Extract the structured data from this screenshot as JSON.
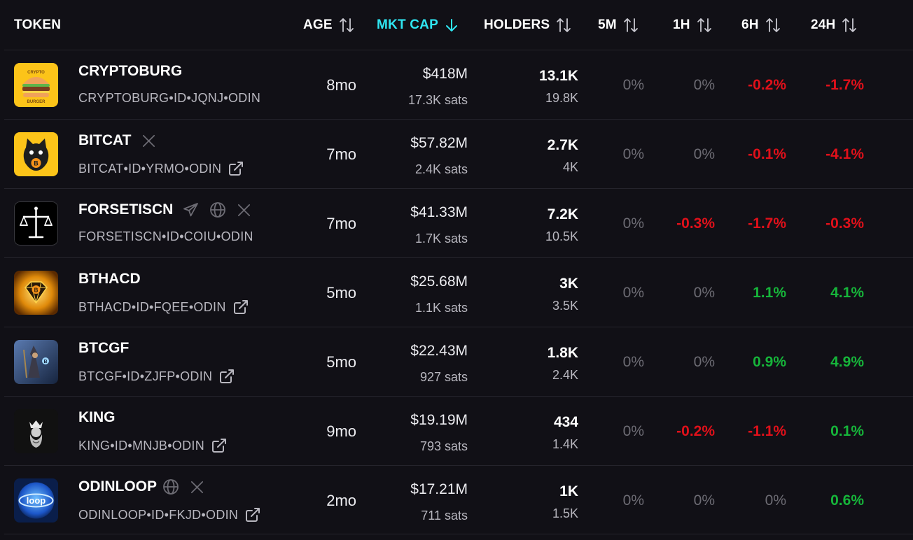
{
  "columns": {
    "token": "TOKEN",
    "age": "AGE",
    "mkt_cap": "MKT CAP",
    "holders": "HOLDERS",
    "m5": "5M",
    "h1": "1H",
    "h6": "6H",
    "h24": "24H"
  },
  "active_sort": {
    "column": "MKT CAP",
    "direction": "descending",
    "color": "#2fe6f2"
  },
  "colors": {
    "negative": "#e0101a",
    "positive": "#16b53a",
    "neutral": "#6d6c74",
    "background": "#111016"
  },
  "rows": [
    {
      "name": "CRYPTOBURG",
      "id": "CRYPTOBURG•ID•JQNJ•ODIN",
      "age": "8mo",
      "mcap": "$418M",
      "sats": "17.3K sats",
      "holders": "13.1K",
      "holders2": "19.8K",
      "m5": "0%",
      "h1": "0%",
      "h6": "-0.2%",
      "h24": "-1.7%",
      "socials": [],
      "logo_icon": "burger-logo-icon",
      "logo_text_top": "CRYPTO",
      "logo_text_bottom": "BURGER",
      "logo_color": "#fcc419"
    },
    {
      "name": "BITCAT",
      "id": "BITCAT•ID•YRMO•ODIN",
      "age": "7mo",
      "mcap": "$57.82M",
      "sats": "2.4K sats",
      "holders": "2.7K",
      "holders2": "4K",
      "m5": "0%",
      "h1": "0%",
      "h6": "-0.1%",
      "h24": "-4.1%",
      "socials": [
        "x-icon"
      ],
      "logo_icon": "cat-logo-icon",
      "logo_color": "#fcc419"
    },
    {
      "name": "FORSETISCN",
      "id": "FORSETISCN•ID•COIU•ODIN",
      "age": "7mo",
      "mcap": "$41.33M",
      "sats": "1.7K sats",
      "holders": "7.2K",
      "holders2": "10.5K",
      "m5": "0%",
      "h1": "-0.3%",
      "h6": "-1.7%",
      "h24": "-0.3%",
      "socials": [
        "telegram-icon",
        "globe-icon",
        "x-icon"
      ],
      "logo_icon": "scales-logo-icon",
      "logo_color": "#000000"
    },
    {
      "name": "BTHACD",
      "id": "BTHACD•ID•FQEE•ODIN",
      "age": "5mo",
      "mcap": "$25.68M",
      "sats": "1.1K sats",
      "holders": "3K",
      "holders2": "3.5K",
      "m5": "0%",
      "h1": "0%",
      "h6": "1.1%",
      "h24": "4.1%",
      "socials": [],
      "logo_icon": "diamond-logo-icon",
      "logo_color": "#f0a010"
    },
    {
      "name": "BTCGF",
      "id": "BTCGF•ID•ZJFP•ODIN",
      "age": "5mo",
      "mcap": "$22.43M",
      "sats": "927 sats",
      "holders": "1.8K",
      "holders2": "2.4K",
      "m5": "0%",
      "h1": "0%",
      "h6": "0.9%",
      "h24": "4.9%",
      "socials": [],
      "logo_icon": "wizard-logo-icon",
      "logo_color": "#2c4a7a"
    },
    {
      "name": "KING",
      "id": "KING•ID•MNJB•ODIN",
      "age": "9mo",
      "mcap": "$19.19M",
      "sats": "793 sats",
      "holders": "434",
      "holders2": "1.4K",
      "m5": "0%",
      "h1": "-0.2%",
      "h6": "-1.1%",
      "h24": "0.1%",
      "socials": [],
      "logo_icon": "king-logo-icon",
      "logo_color": "#111111"
    },
    {
      "name": "ODINLOOP",
      "id": "ODINLOOP•ID•FKJD•ODIN",
      "age": "2mo",
      "mcap": "$17.21M",
      "sats": "711 sats",
      "holders": "1K",
      "holders2": "1.5K",
      "m5": "0%",
      "h1": "0%",
      "h6": "0%",
      "h24": "0.6%",
      "socials": [
        "globe-icon",
        "x-icon"
      ],
      "logo_icon": "loop-logo-icon",
      "logo_text": "loop",
      "logo_color": "#1c56c8"
    }
  ]
}
